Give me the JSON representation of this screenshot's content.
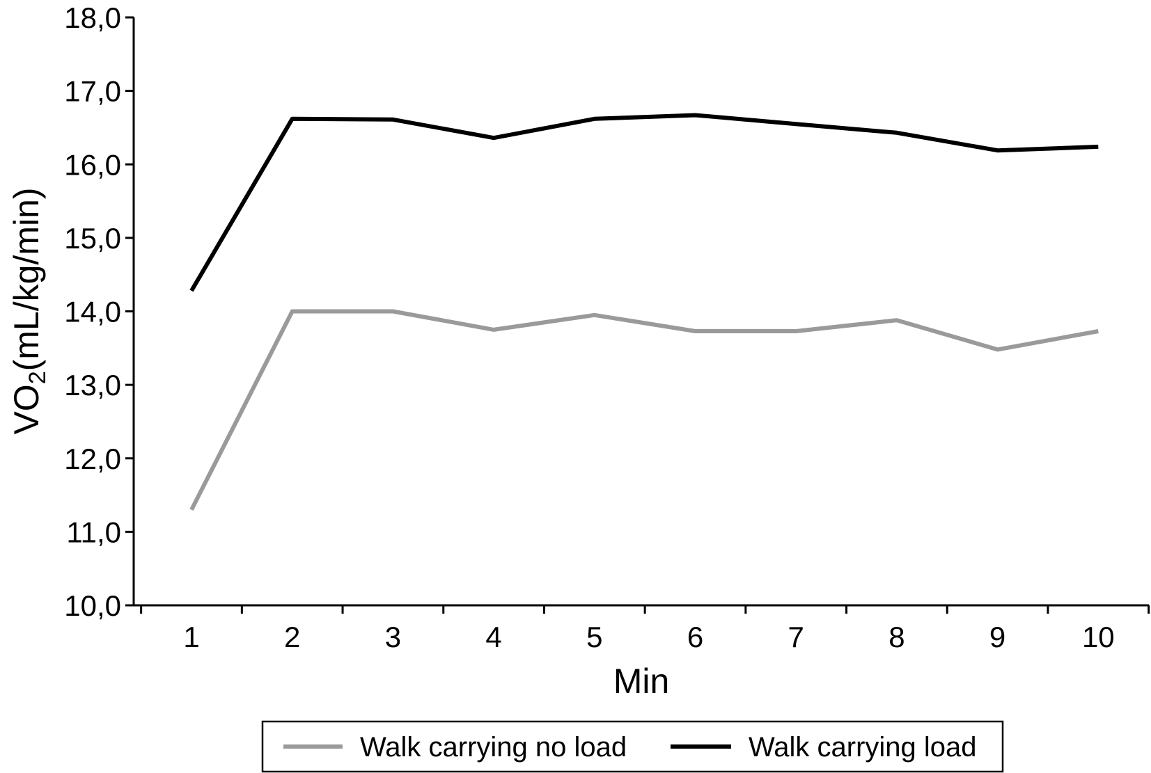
{
  "chart_data": {
    "type": "line",
    "title": "",
    "xlabel": "Min",
    "ylabel_main": "VO",
    "ylabel_sub": "2",
    "ylabel_rest": "(mL/kg/min)",
    "x": [
      1,
      2,
      3,
      4,
      5,
      6,
      7,
      8,
      9,
      10
    ],
    "x_tick_labels": [
      "1",
      "2",
      "3",
      "4",
      "5",
      "6",
      "7",
      "8",
      "9",
      "10"
    ],
    "ylim": [
      10,
      18
    ],
    "y_ticks": [
      10,
      11,
      12,
      13,
      14,
      15,
      16,
      17,
      18
    ],
    "y_tick_labels": [
      "10,0",
      "11,0",
      "12,0",
      "13,0",
      "14,0",
      "15,0",
      "16,0",
      "17,0",
      "18,0"
    ],
    "grid": false,
    "legend_position": "bottom-center",
    "series": [
      {
        "name": "Walk carrying no load",
        "color": "#9a9a9a",
        "values": [
          11.3,
          14.0,
          14.0,
          13.75,
          13.95,
          13.73,
          13.73,
          13.88,
          13.48,
          13.73
        ]
      },
      {
        "name": "Walk carrying load",
        "color": "#000000",
        "values": [
          14.28,
          16.62,
          16.61,
          16.36,
          16.62,
          16.67,
          16.55,
          16.43,
          16.19,
          16.24
        ]
      }
    ]
  }
}
